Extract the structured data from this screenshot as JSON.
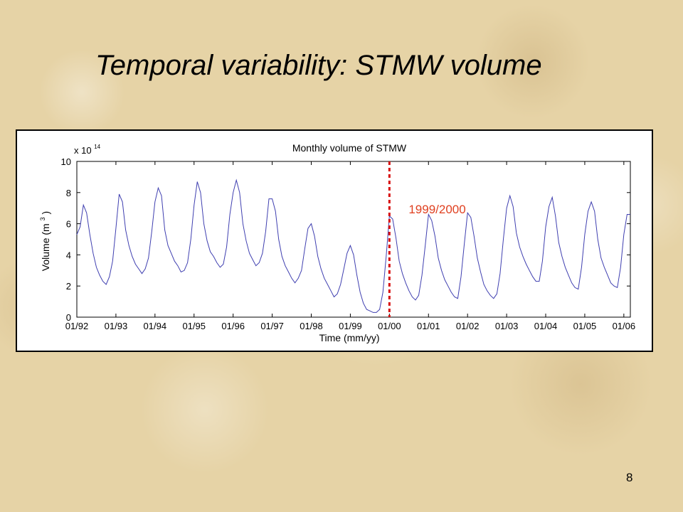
{
  "slide": {
    "title": "Temporal variability: STMW volume",
    "page_number": "8"
  },
  "chart_data": {
    "type": "line",
    "title": "Monthly volume of STMW",
    "xlabel": "Time (mm/yy)",
    "ylabel": "Volume (m3)",
    "ylabel_base": "Volume (m",
    "ylabel_sup": "3",
    "ylabel_close": ")",
    "y_multiplier": "x 10",
    "y_multiplier_exp": "14",
    "ylim": [
      0,
      10
    ],
    "yticks": [
      "0",
      "2",
      "4",
      "6",
      "8",
      "10"
    ],
    "xticks": [
      "01/92",
      "01/93",
      "01/94",
      "01/95",
      "01/96",
      "01/97",
      "01/98",
      "01/99",
      "01/00",
      "01/01",
      "01/02",
      "01/03",
      "01/04",
      "01/05",
      "01/06"
    ],
    "xlim": [
      "01/92",
      "03/06"
    ],
    "series": [
      {
        "color": "#3f3fb0",
        "start": "01/92",
        "unit": "x 10^14 m3",
        "values": [
          5.3,
          5.8,
          7.2,
          6.7,
          5.3,
          4.1,
          3.2,
          2.7,
          2.3,
          2.1,
          2.6,
          3.6,
          5.7,
          7.9,
          7.4,
          5.6,
          4.6,
          3.9,
          3.4,
          3.1,
          2.8,
          3.1,
          3.8,
          5.5,
          7.4,
          8.3,
          7.8,
          5.6,
          4.6,
          4.1,
          3.6,
          3.3,
          2.9,
          3.0,
          3.5,
          5.0,
          7.2,
          8.7,
          8.0,
          6.0,
          4.9,
          4.2,
          3.9,
          3.5,
          3.2,
          3.4,
          4.5,
          6.6,
          8.0,
          8.8,
          8.0,
          6.0,
          4.9,
          4.1,
          3.7,
          3.3,
          3.5,
          4.1,
          5.5,
          7.6,
          7.6,
          6.8,
          5.0,
          3.9,
          3.3,
          2.9,
          2.5,
          2.2,
          2.5,
          3.0,
          4.4,
          5.7,
          6.0,
          5.2,
          3.9,
          3.1,
          2.5,
          2.1,
          1.7,
          1.3,
          1.5,
          2.1,
          3.1,
          4.1,
          4.6,
          4.0,
          2.7,
          1.6,
          0.9,
          0.5,
          0.4,
          0.3,
          0.3,
          0.5,
          1.6,
          3.9,
          6.5,
          6.3,
          5.1,
          3.6,
          2.8,
          2.2,
          1.7,
          1.3,
          1.1,
          1.4,
          2.7,
          4.6,
          6.6,
          6.2,
          5.2,
          3.8,
          3.0,
          2.4,
          2.0,
          1.6,
          1.3,
          1.2,
          2.6,
          4.7,
          6.7,
          6.4,
          5.2,
          3.8,
          2.9,
          2.1,
          1.7,
          1.4,
          1.2,
          1.5,
          2.8,
          5.0,
          7.0,
          7.8,
          7.1,
          5.4,
          4.5,
          3.9,
          3.4,
          3.0,
          2.6,
          2.3,
          2.3,
          3.6,
          5.8,
          7.1,
          7.7,
          6.5,
          4.8,
          3.9,
          3.2,
          2.7,
          2.2,
          1.9,
          1.8,
          3.2,
          5.3,
          6.8,
          7.4,
          6.8,
          5.0,
          3.8,
          3.2,
          2.7,
          2.2,
          2.0,
          1.9,
          3.2,
          5.3,
          6.6,
          6.6
        ]
      }
    ],
    "annotation": {
      "label": "1999/2000",
      "x": "01/00",
      "color": "#e04020",
      "line_color": "#d81010"
    },
    "grid": false
  }
}
